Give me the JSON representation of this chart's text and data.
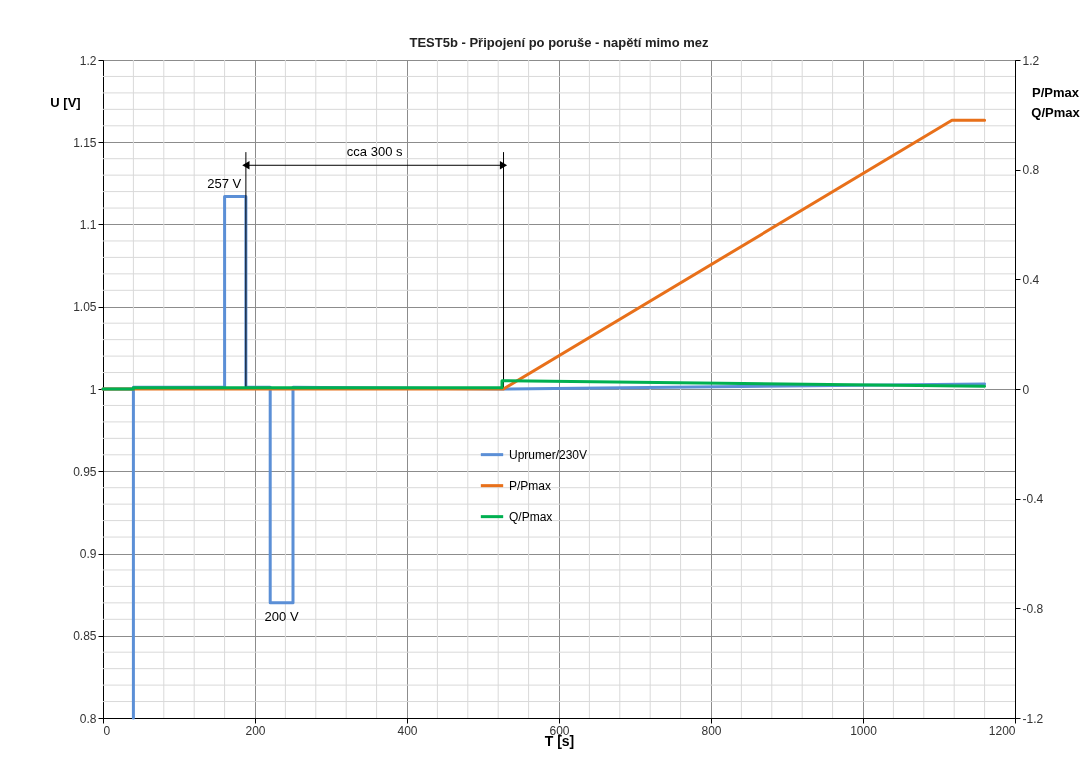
{
  "chart_data": {
    "type": "line",
    "title": "TEST5b - Připojení po poruše - napětí mimo mez",
    "xlabel": "T [s]",
    "ylabel": "U [V]",
    "y2label": "P/Pmax\nQ/Pmax",
    "series": [
      {
        "name": "Uprumer/230V",
        "color": "#5b8fd6",
        "x": [
          0,
          40,
          40,
          40,
          160,
          160,
          188,
          188,
          220,
          220,
          250,
          250,
          527,
          1160
        ],
        "values": [
          1.0,
          1.0,
          0.8,
          1.001,
          1.001,
          1.117,
          1.117,
          1.001,
          1.001,
          0.87,
          0.87,
          1.001,
          1.0,
          1.003
        ]
      },
      {
        "name": "P/Pmax",
        "color": "#e8701a",
        "axis": "y2",
        "x": [
          0,
          527,
          1117,
          1160
        ],
        "values": [
          0,
          0,
          0.98,
          0.98
        ]
      },
      {
        "name": "Q/Pmax",
        "color": "#00b050",
        "axis": "y2",
        "x": [
          0,
          40,
          40,
          525,
          525,
          1160
        ],
        "values": [
          0,
          0,
          0.005,
          0.005,
          0.03,
          0.01
        ]
      }
    ],
    "xlim": [
      0,
      1200
    ],
    "xticks": [
      0,
      200,
      400,
      600,
      800,
      1000,
      1200
    ],
    "ylim": [
      0.8,
      1.2
    ],
    "yticks": [
      0.8,
      0.85,
      0.9,
      0.95,
      1,
      1.05,
      1.1,
      1.15,
      1.2
    ],
    "y2lim": [
      -1.2,
      1.2
    ],
    "y2ticks": [
      -1.2,
      -0.8,
      -0.4,
      0,
      0.4,
      0.8,
      1.2
    ],
    "annotations": [
      {
        "text": "257 V",
        "x": 174,
        "y": 1.117
      },
      {
        "text": "200 V",
        "x": 235,
        "y": 0.87
      },
      "cca 300 s"
    ],
    "ref_lines": [
      {
        "axis": "x",
        "value": 188,
        "color": "#000000"
      },
      {
        "axis": "x",
        "value": 527,
        "color": "#000000"
      }
    ],
    "grid": true,
    "legend": "center",
    "line_style": "solid"
  }
}
